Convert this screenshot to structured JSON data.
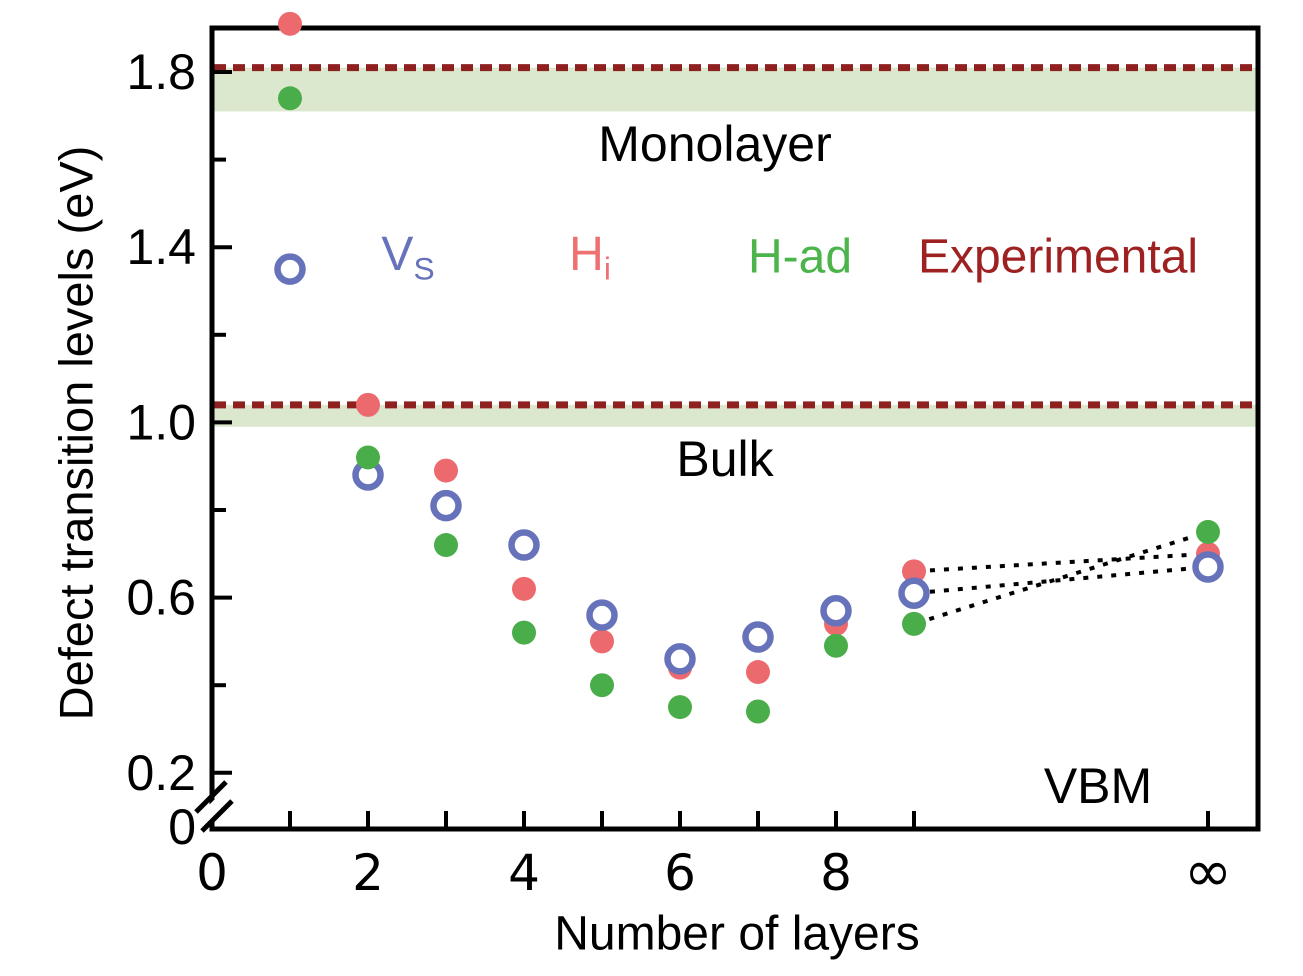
{
  "figure": {
    "background": "#ffffff"
  },
  "axes": {
    "y_title": "Defect transition levels (eV)",
    "x_title": "Number of layers",
    "y_tick_labels": [
      "1.8",
      "1.4",
      "1.0",
      "0.6",
      "0.2",
      "0"
    ],
    "x_tick_labels": [
      "0",
      "2",
      "4",
      "6",
      "8",
      "∞"
    ],
    "y_axis_break": true
  },
  "annotations": {
    "monolayer": "Monolayer",
    "bulk": "Bulk",
    "vbm": "VBM"
  },
  "legend": {
    "items": [
      {
        "label": "V",
        "sub": "S",
        "color": "#6673bb"
      },
      {
        "label": "H",
        "sub": "i",
        "color": "#ee7070"
      },
      {
        "label": "H-ad",
        "sub": "",
        "color": "#4bb44b"
      },
      {
        "label": "Experimental",
        "sub": "",
        "color": "#9e2121"
      }
    ]
  },
  "colors": {
    "vs_marker": "#6673bb",
    "hi_marker": "#ec6a6e",
    "had_marker": "#49ad49",
    "experimental_line": "#8f2020",
    "experimental_band": "#dbe8cd",
    "connector": "#000000",
    "axis": "#000000"
  },
  "chart_data": {
    "type": "scatter",
    "title": "",
    "xlabel": "Number of layers",
    "ylabel": "Defect transition levels (eV)",
    "x_values": [
      1,
      2,
      3,
      4,
      5,
      6,
      7,
      8,
      9,
      "infinity"
    ],
    "series": [
      {
        "name": "Hi",
        "marker": "filled-circle",
        "color": "#ec6a6e",
        "values": [
          1.91,
          1.04,
          0.89,
          0.62,
          0.5,
          0.44,
          0.43,
          0.54,
          0.66,
          0.7
        ]
      },
      {
        "name": "Vs",
        "marker": "open-circle",
        "color": "#6673bb",
        "values": [
          1.35,
          0.88,
          0.81,
          0.72,
          0.56,
          0.46,
          0.51,
          0.57,
          0.61,
          0.67
        ]
      },
      {
        "name": "H-ad",
        "marker": "filled-circle",
        "color": "#49ad49",
        "values": [
          1.74,
          0.92,
          0.72,
          0.52,
          0.4,
          0.35,
          0.34,
          0.49,
          0.54,
          0.75
        ]
      }
    ],
    "experimental_levels": [
      {
        "label": "Monolayer",
        "line_value": 1.81,
        "band": [
          1.71,
          1.81
        ]
      },
      {
        "label": "Bulk",
        "line_value": 1.04,
        "band": [
          0.99,
          1.04
        ]
      }
    ],
    "connectors_note": "dotted lines join 9-layer points to infinity points for each series",
    "x_tick_positions_labeled": [
      0,
      2,
      4,
      6,
      8,
      "infinity"
    ],
    "x_tick_positions_minor": [
      1,
      3,
      5,
      7,
      9
    ],
    "y_ticks_major": [
      1.8,
      1.4,
      1.0,
      0.6,
      0.2
    ],
    "y_ticks_minor": [
      1.6,
      1.2,
      0.8,
      0.4
    ],
    "ylim": [
      0,
      1.95
    ],
    "grid": false,
    "legend_position": "inside top, row of colored labels"
  }
}
